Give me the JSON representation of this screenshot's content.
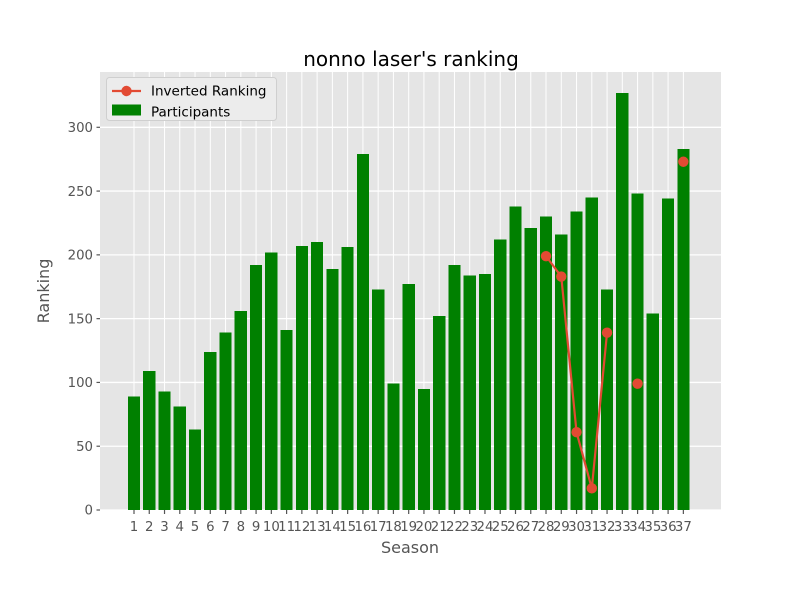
{
  "chart_data": {
    "type": "bar+line",
    "title": "nonno laser's ranking",
    "xlabel": "Season",
    "ylabel": "Ranking",
    "categories": [
      1,
      2,
      3,
      4,
      5,
      6,
      7,
      8,
      9,
      10,
      11,
      12,
      13,
      14,
      15,
      16,
      17,
      18,
      19,
      20,
      21,
      22,
      23,
      24,
      25,
      26,
      27,
      28,
      29,
      30,
      31,
      32,
      33,
      34,
      35,
      36,
      37
    ],
    "yticks": [
      0,
      50,
      100,
      150,
      200,
      250,
      300
    ],
    "ylim": [
      0,
      343
    ],
    "grid": true,
    "legend_position": "upper left",
    "plot_background_color": "#e5e5e5",
    "grid_color": "#ffffff",
    "tick_label_color": "#555555",
    "axis_label_color": "#555555",
    "title_color": "#000000",
    "legend_background_color": "#ececec",
    "legend_border_color": "#cfcfcf",
    "series": [
      {
        "name": "Inverted Ranking",
        "type": "line",
        "color": "#e24a33",
        "values": [
          null,
          null,
          null,
          null,
          null,
          null,
          null,
          null,
          null,
          null,
          null,
          null,
          null,
          null,
          null,
          null,
          null,
          null,
          null,
          null,
          null,
          null,
          null,
          null,
          null,
          null,
          null,
          199,
          183,
          61,
          17,
          139,
          null,
          99,
          null,
          null,
          273
        ]
      },
      {
        "name": "Participants",
        "type": "bar",
        "color": "#008000",
        "values": [
          89,
          109,
          93,
          81,
          63,
          124,
          139,
          156,
          192,
          202,
          141,
          207,
          210,
          189,
          206,
          279,
          173,
          99,
          177,
          95,
          152,
          192,
          184,
          185,
          212,
          238,
          221,
          230,
          216,
          234,
          245,
          173,
          327,
          248,
          154,
          244,
          283
        ]
      }
    ]
  }
}
